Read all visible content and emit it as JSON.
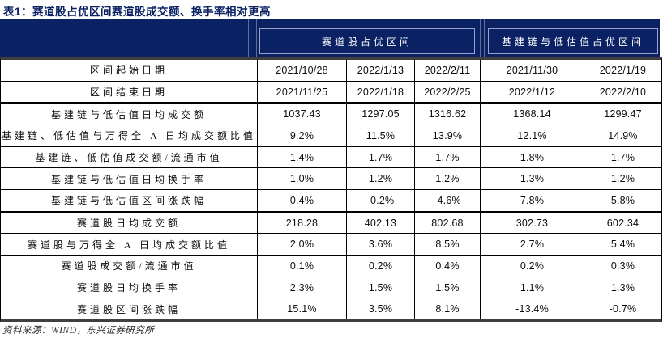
{
  "title": "表1：赛道股占优区间赛道股成交额、换手率相对更高",
  "colors": {
    "header_navy": "#0a2164",
    "header_border": "#9aa4c6",
    "body_border": "#000000",
    "outer_rule": "#3f3f3f"
  },
  "table": {
    "group_headers": [
      {
        "label": "赛道股占优区间",
        "span": 3
      },
      {
        "label": "基建链与低估值占优区间",
        "span": 2
      }
    ],
    "rows": [
      {
        "label": "区间起始日期",
        "values": [
          "2021/10/28",
          "2022/1/13",
          "2022/2/11",
          "2021/11/30",
          "2022/1/19"
        ]
      },
      {
        "label": "区间结束日期",
        "values": [
          "2021/11/25",
          "2022/1/18",
          "2022/2/25",
          "2022/1/12",
          "2022/2/10"
        ]
      },
      {
        "label": "基建链与低估值日均成交额",
        "values": [
          "1037.43",
          "1297.05",
          "1316.62",
          "1368.14",
          "1299.47"
        ],
        "section_start": true
      },
      {
        "label": "基建链、低估值与万得全 A 日均成交额比值",
        "values": [
          "9.2%",
          "11.5%",
          "13.9%",
          "12.1%",
          "14.9%"
        ]
      },
      {
        "label": "基建链、低估值成交额/流通市值",
        "values": [
          "1.4%",
          "1.7%",
          "1.7%",
          "1.8%",
          "1.7%"
        ]
      },
      {
        "label": "基建链与低估值日均换手率",
        "values": [
          "1.0%",
          "1.2%",
          "1.2%",
          "1.3%",
          "1.2%"
        ]
      },
      {
        "label": "基建链与低估值区间涨跌幅",
        "values": [
          "0.4%",
          "-0.2%",
          "-4.6%",
          "7.8%",
          "5.8%"
        ]
      },
      {
        "label": "赛道股日均成交额",
        "values": [
          "218.28",
          "402.13",
          "802.68",
          "302.73",
          "602.34"
        ],
        "section_start": true
      },
      {
        "label": "赛道股与万得全 A 日均成交额比值",
        "values": [
          "2.0%",
          "3.6%",
          "8.5%",
          "2.7%",
          "5.4%"
        ]
      },
      {
        "label": "赛道股成交额/流通市值",
        "values": [
          "0.1%",
          "0.2%",
          "0.4%",
          "0.2%",
          "0.3%"
        ]
      },
      {
        "label": "赛道股日均换手率",
        "values": [
          "2.3%",
          "1.5%",
          "1.5%",
          "1.1%",
          "1.3%"
        ]
      },
      {
        "label": "赛道股区间涨跌幅",
        "values": [
          "15.1%",
          "3.5%",
          "8.1%",
          "-13.4%",
          "-0.7%"
        ]
      }
    ]
  },
  "footer": "资料来源：WIND，东兴证券研究所"
}
